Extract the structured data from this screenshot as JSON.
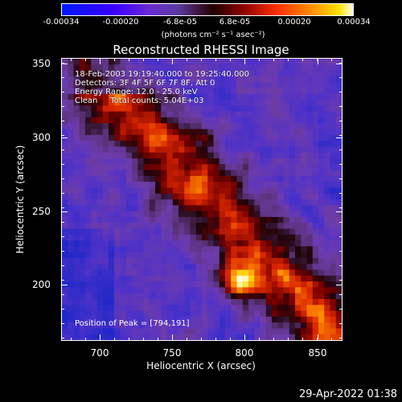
{
  "colorbar": {
    "ticks": [
      "-0.00034",
      "-0.00020",
      "-6.8e-05",
      "6.8e-05",
      "0.00020",
      "0.00034"
    ],
    "units": "(photons cm⁻² s⁻¹ asec⁻²)"
  },
  "title": "Reconstructed RHESSI Image",
  "info": {
    "line1": "18-Feb-2003 19:19:40.000 to 19:25:40.000",
    "line2": "Detectors: 3F 4F 5F 6F 7F 8F, Att 0",
    "line3": "Energy Range: 12.0 - 25.0 keV",
    "line4": "Clean     Total counts: 5.04E+03"
  },
  "peak_label": "Position of Peak = [794,191]",
  "chart_data": {
    "type": "heatmap",
    "xlabel": "Heliocentric X (arcsec)",
    "ylabel": "Heliocentric Y (arcsec)",
    "xlim": [
      670,
      865
    ],
    "ylim": [
      157,
      352
    ],
    "x_ticks": [
      "700",
      "750",
      "800",
      "850"
    ],
    "y_ticks": [
      "200",
      "250",
      "300",
      "350"
    ],
    "peak": [
      794,
      191
    ]
  },
  "timestamp": "29-Apr-2022 01:38"
}
